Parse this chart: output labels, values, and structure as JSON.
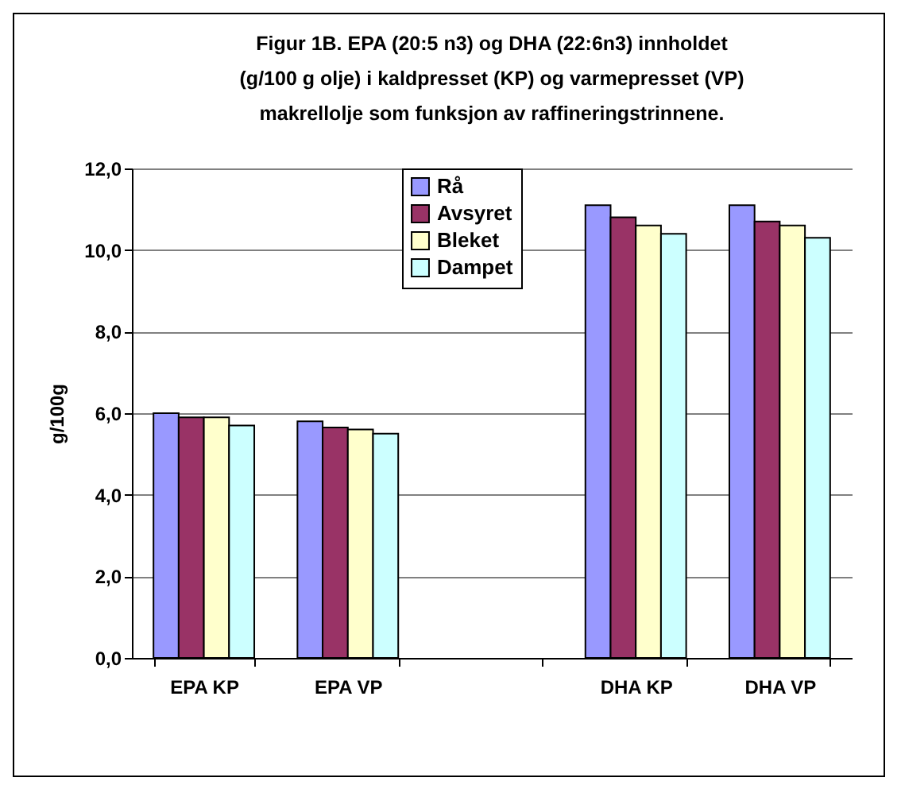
{
  "chart_data": {
    "type": "bar",
    "title": "Figur 1B. EPA (20:5 n3) og DHA (22:6n3) innholdet (g/100 g olje) i kaldpresset (KP) og varmepresset (VP) makrellolje som funksjon av raffineringstrinnene.",
    "ylabel": "g/100g",
    "categories": [
      "EPA KP",
      "EPA VP",
      null,
      "DHA KP",
      "DHA VP"
    ],
    "series": [
      {
        "name": "Rå",
        "color": "#9999ff",
        "values": [
          6.0,
          5.8,
          null,
          11.1,
          11.1
        ]
      },
      {
        "name": "Avsyret",
        "color": "#993366",
        "values": [
          5.9,
          5.65,
          null,
          10.8,
          10.7
        ]
      },
      {
        "name": "Bleket",
        "color": "#ffffcc",
        "values": [
          5.9,
          5.6,
          null,
          10.6,
          10.6
        ]
      },
      {
        "name": "Dampet",
        "color": "#ccffff",
        "values": [
          5.7,
          5.5,
          null,
          10.4,
          10.3
        ]
      }
    ],
    "ylim": [
      0,
      12
    ],
    "yticks": [
      {
        "value": 0,
        "label": "0,0"
      },
      {
        "value": 2,
        "label": "2,0"
      },
      {
        "value": 4,
        "label": "4,0"
      },
      {
        "value": 6,
        "label": "6,0"
      },
      {
        "value": 8,
        "label": "8,0"
      },
      {
        "value": 10,
        "label": "10,0"
      },
      {
        "value": 12,
        "label": "12,0"
      }
    ],
    "grid": "y",
    "legend": "top"
  }
}
